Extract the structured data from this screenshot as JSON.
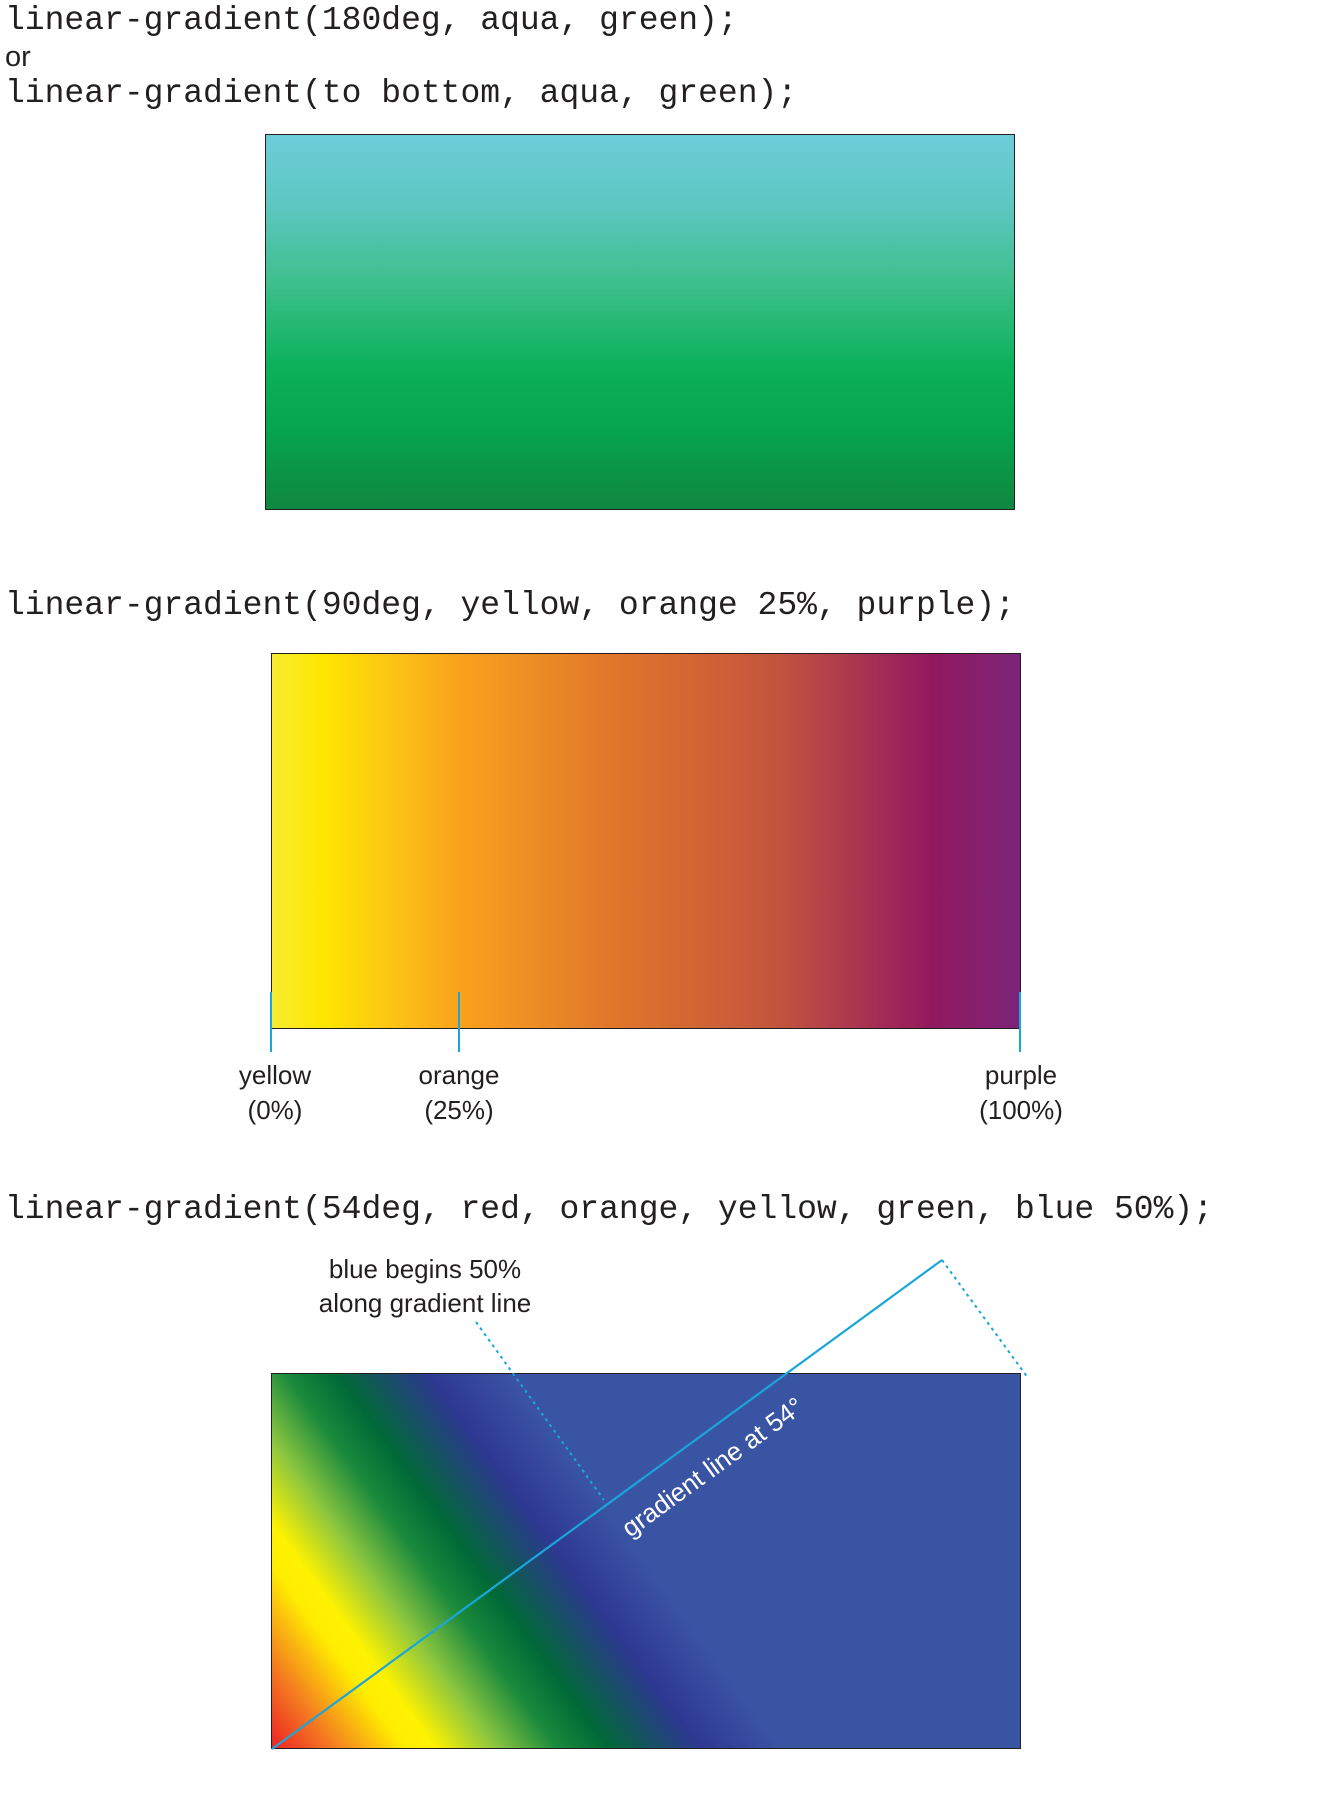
{
  "section1": {
    "code_a": "linear-gradient(180deg, aqua, green);",
    "or_text": "or",
    "code_b": "linear-gradient(to bottom, aqua, green);"
  },
  "section2": {
    "code": "linear-gradient(90deg, yellow, orange 25%, purple);",
    "stops": [
      {
        "name": "yellow",
        "position": "(0%)"
      },
      {
        "name": "orange",
        "position": "(25%)"
      },
      {
        "name": "purple",
        "position": "(100%)"
      }
    ]
  },
  "section3": {
    "code": "linear-gradient(54deg, red, orange, yellow, green, blue 50%);",
    "note_line1": "blue  begins 50%",
    "note_line2": "along gradient line",
    "line_label": "gradient line at 54°"
  },
  "colors": {
    "aqua_top": "#6dcdd9",
    "green_bottom": "#0f8740",
    "yellow": "#ffe600",
    "orange": "#f9a21d",
    "purple": "#7b2479",
    "red": "#ed2224",
    "blue": "#3a54a4",
    "guide_line": "#1aa6d9"
  }
}
